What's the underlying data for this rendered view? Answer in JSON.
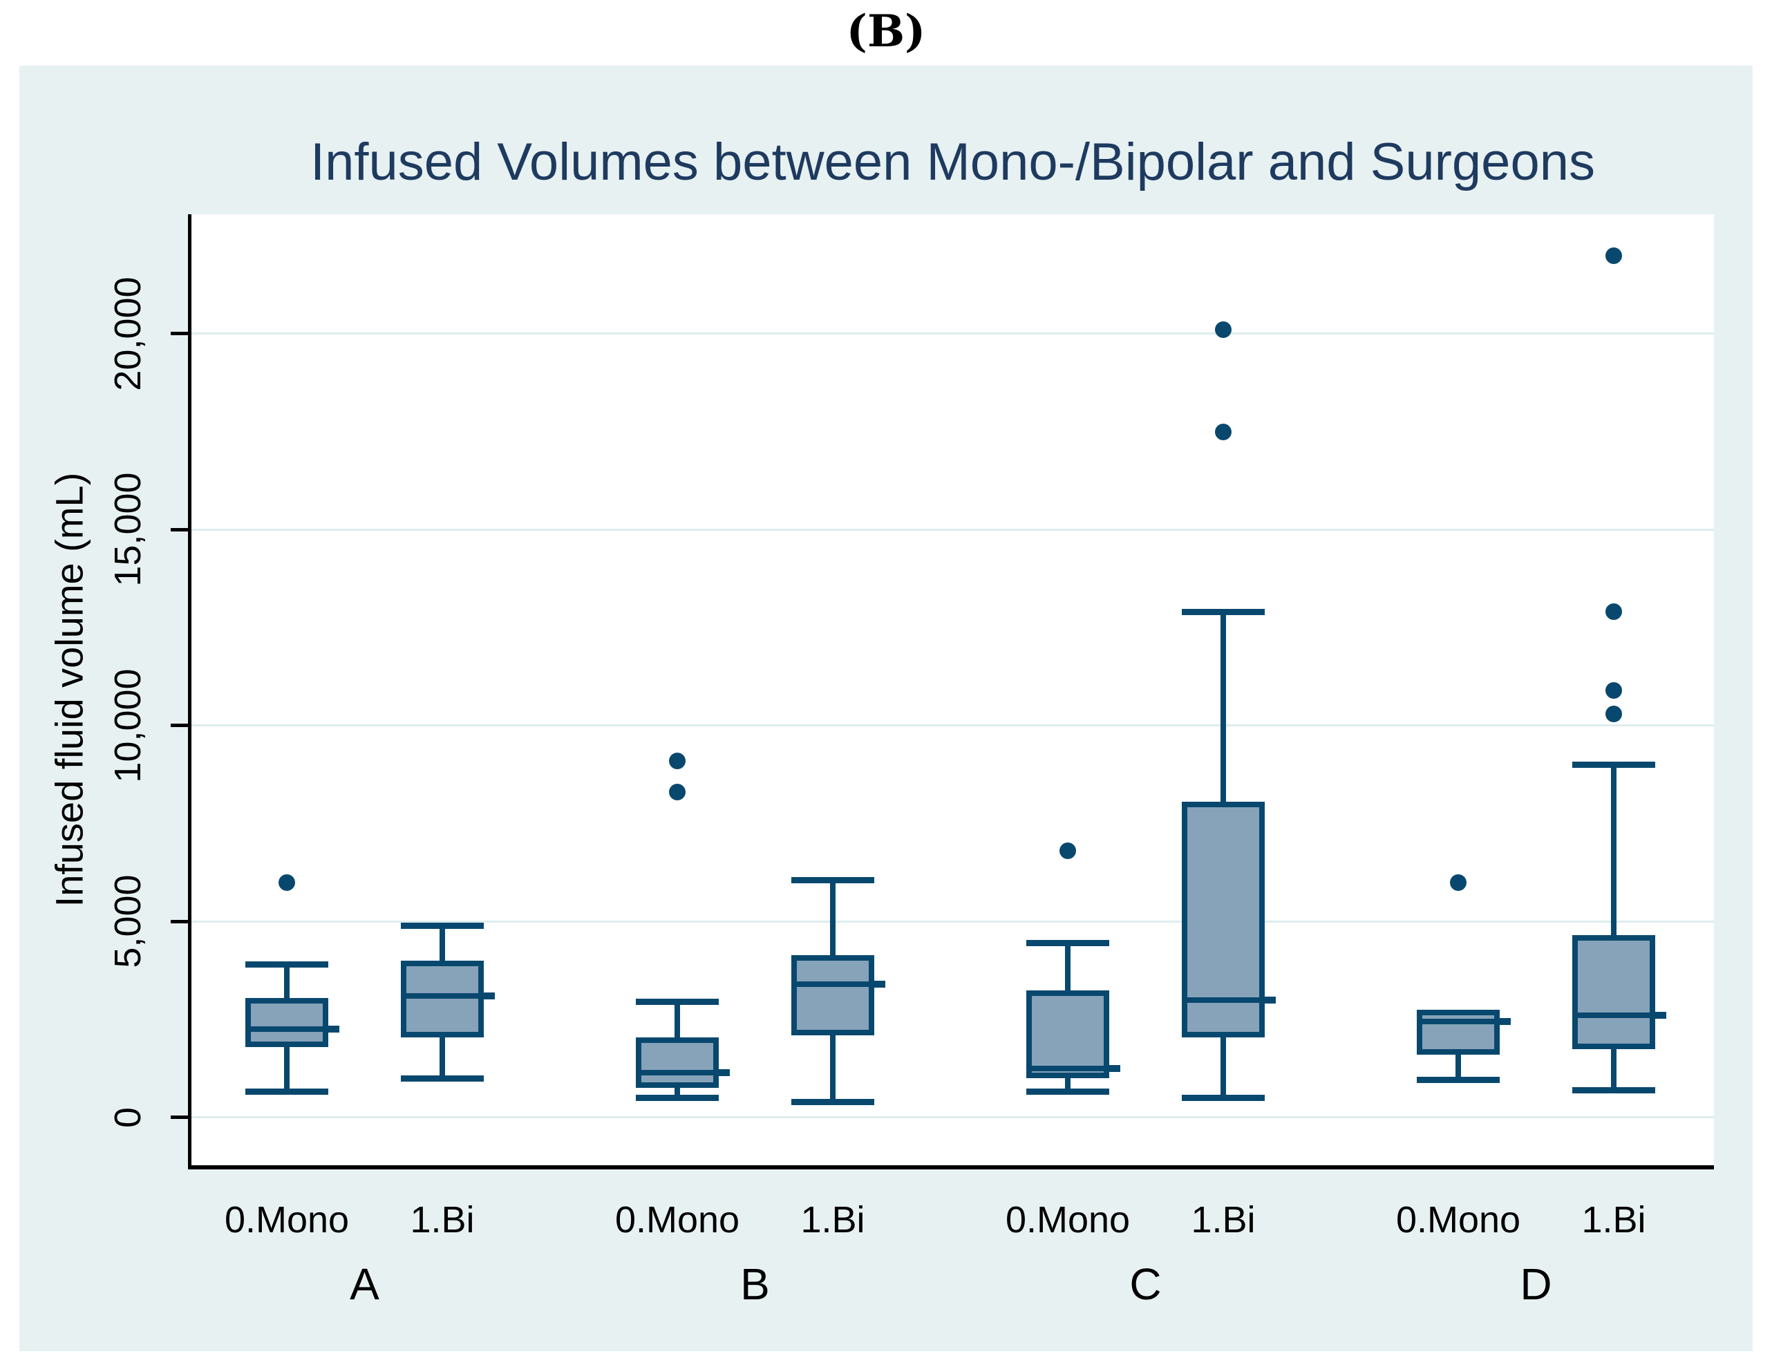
{
  "figure": {
    "tag": "(B)"
  },
  "chart_data": {
    "type": "box",
    "title": "Infused Volumes between Mono-/Bipolar and Surgeons",
    "ylabel": "Infused fluid volume (mL)",
    "xlabel": "",
    "legend": null,
    "grid": "horizontal",
    "y_ticks": [
      0,
      5000,
      10000,
      15000,
      20000
    ],
    "y_tick_labels": [
      "0",
      "5,000",
      "10,000",
      "15,000",
      "20,000"
    ],
    "ylim": [
      -1220,
      23050
    ],
    "groups": [
      {
        "label": "A",
        "boxes": [
          {
            "label": "0.Mono",
            "whislo": 650,
            "q1": 1800,
            "med": 2250,
            "q3": 3050,
            "whishi": 3900,
            "outliers": [
              6000
            ]
          },
          {
            "label": "1.Bi",
            "whislo": 1000,
            "q1": 2050,
            "med": 3100,
            "q3": 4000,
            "whishi": 4900,
            "outliers": []
          }
        ]
      },
      {
        "label": "B",
        "boxes": [
          {
            "label": "0.Mono",
            "whislo": 500,
            "q1": 750,
            "med": 1150,
            "q3": 2050,
            "whishi": 2950,
            "outliers": [
              8300,
              9100
            ]
          },
          {
            "label": "1.Bi",
            "whislo": 400,
            "q1": 2100,
            "med": 3400,
            "q3": 4150,
            "whishi": 6050,
            "outliers": []
          }
        ]
      },
      {
        "label": "C",
        "boxes": [
          {
            "label": "0.Mono",
            "whislo": 650,
            "q1": 1000,
            "med": 1250,
            "q3": 3250,
            "whishi": 4450,
            "outliers": [
              6800
            ]
          },
          {
            "label": "1.Bi",
            "whislo": 500,
            "q1": 2050,
            "med": 3000,
            "q3": 8050,
            "whishi": 12900,
            "outliers": [
              17500,
              20100
            ]
          }
        ]
      },
      {
        "label": "D",
        "boxes": [
          {
            "label": "0.Mono",
            "whislo": 950,
            "q1": 1600,
            "med": 2450,
            "q3": 2750,
            "whishi": 2750,
            "outliers": [
              6000
            ]
          },
          {
            "label": "1.Bi",
            "whislo": 700,
            "q1": 1750,
            "med": 2600,
            "q3": 4650,
            "whishi": 9000,
            "outliers": [
              10300,
              10900,
              12900,
              22000
            ]
          }
        ]
      }
    ],
    "colors": {
      "panel_background": "#e7f1f2",
      "plot_background": "#ffffff",
      "gridline": "#ddedee",
      "box_fill": "#87a3b9",
      "box_border": "#09486e",
      "outlier_dot": "#09486e",
      "title_text": "#1e3a5f",
      "axis_text": "#000000"
    }
  }
}
